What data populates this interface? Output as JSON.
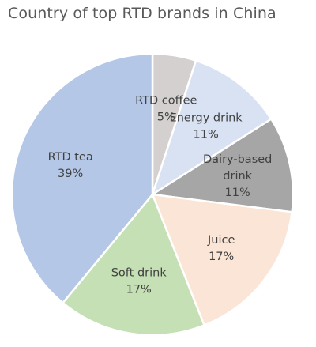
{
  "chart_data": {
    "type": "pie",
    "title": "Country of top RTD brands in China",
    "start": "12 o'clock",
    "direction": "clockwise",
    "legend": "none",
    "slice_border_color": "#ffffff",
    "slices": [
      {
        "name": "RTD coffee",
        "label_lines": [
          "RTD coffee"
        ],
        "value": 5,
        "value_label": "5%",
        "color": "#d3d0cf"
      },
      {
        "name": "Energy drink",
        "label_lines": [
          "Energy drink"
        ],
        "value": 11,
        "value_label": "11%",
        "color": "#d9e2f3"
      },
      {
        "name": "Dairy-based drink",
        "label_lines": [
          "Dairy-based",
          "drink"
        ],
        "value": 11,
        "value_label": "11%",
        "color": "#a6a6a6"
      },
      {
        "name": "Juice",
        "label_lines": [
          "Juice"
        ],
        "value": 17,
        "value_label": "17%",
        "color": "#fbe5d6"
      },
      {
        "name": "Soft drink",
        "label_lines": [
          "Soft drink"
        ],
        "value": 17,
        "value_label": "17%",
        "color": "#c5e0b4"
      },
      {
        "name": "RTD tea",
        "label_lines": [
          "RTD tea"
        ],
        "value": 39,
        "value_label": "39%",
        "color": "#b4c7e7"
      }
    ]
  }
}
